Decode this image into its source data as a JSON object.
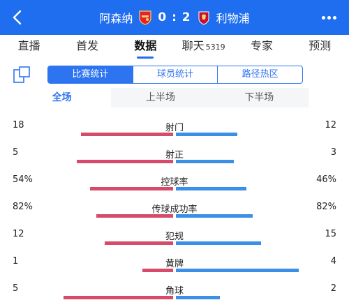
{
  "header": {
    "home_team": "阿森纳",
    "away_team": "利物浦",
    "score": "0 : 2",
    "colors": {
      "background": "#1f6ef0",
      "text": "#ffffff"
    }
  },
  "nav": {
    "tabs": [
      {
        "label": "直播",
        "active": false
      },
      {
        "label": "首发",
        "active": false
      },
      {
        "label": "数据",
        "active": true
      },
      {
        "label": "聊天",
        "count": "5319",
        "active": false
      },
      {
        "label": "专家",
        "active": false
      },
      {
        "label": "预测",
        "active": false
      }
    ]
  },
  "segment": {
    "options": [
      "比赛统计",
      "球员统计",
      "路径热区"
    ],
    "active_index": 0
  },
  "period": {
    "options": [
      "全场",
      "上半场",
      "下半场"
    ],
    "active_index": 0
  },
  "stats": [
    {
      "label": "射门",
      "home": "18",
      "away": "12",
      "home_value": 18,
      "away_value": 12
    },
    {
      "label": "射正",
      "home": "5",
      "away": "3",
      "home_value": 5,
      "away_value": 3
    },
    {
      "label": "控球率",
      "home": "54%",
      "away": "46%",
      "home_value": 54,
      "away_value": 46
    },
    {
      "label": "传球成功率",
      "home": "82%",
      "away": "82%",
      "home_value": 82,
      "away_value": 82
    },
    {
      "label": "犯规",
      "home": "12",
      "away": "15",
      "home_value": 12,
      "away_value": 15
    },
    {
      "label": "黄牌",
      "home": "1",
      "away": "4",
      "home_value": 1,
      "away_value": 4
    },
    {
      "label": "角球",
      "home": "5",
      "away": "2",
      "home_value": 5,
      "away_value": 2
    }
  ],
  "colors": {
    "home_bar": "#d64b6a",
    "away_bar": "#3b8fe6",
    "accent": "#2d74f0"
  }
}
